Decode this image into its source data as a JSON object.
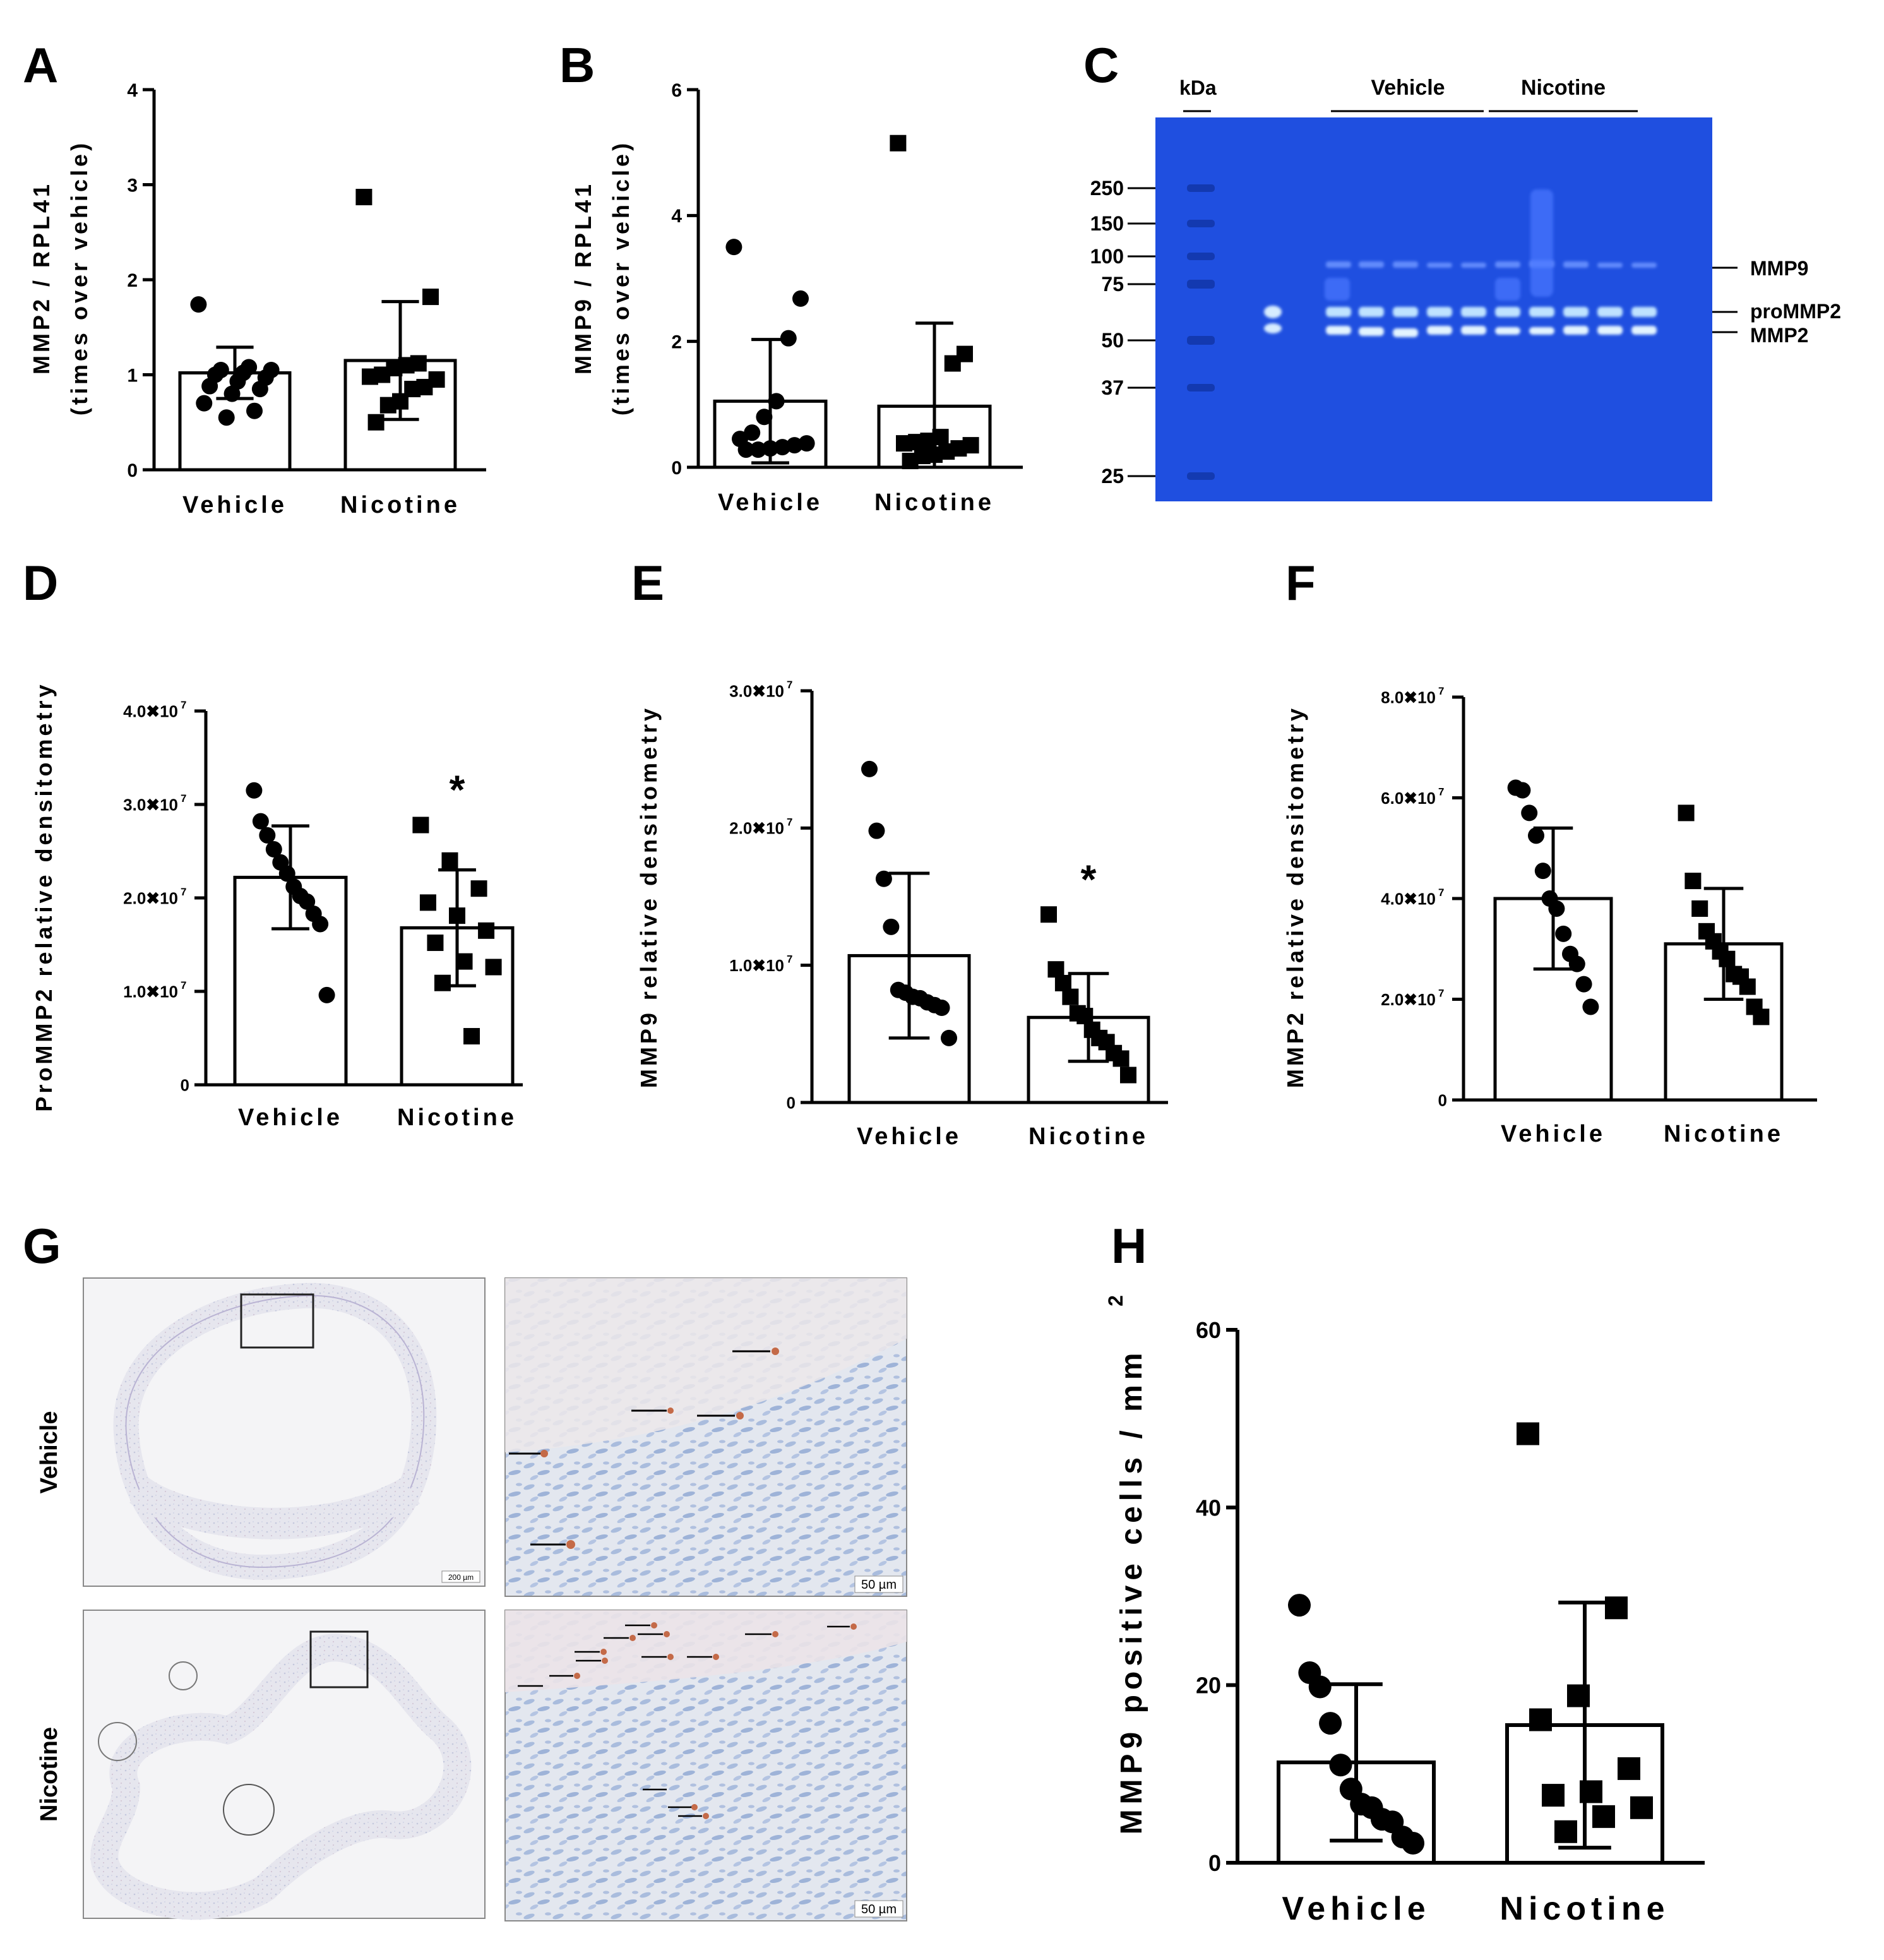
{
  "figure": {
    "panels": [
      {
        "letter": "A"
      },
      {
        "letter": "B"
      },
      {
        "letter": "C"
      },
      {
        "letter": "D"
      },
      {
        "letter": "E"
      },
      {
        "letter": "F"
      },
      {
        "letter": "G"
      },
      {
        "letter": "H"
      }
    ],
    "scale_labels": {
      "s200": "200 µm",
      "s50": "50 µm"
    },
    "histo_labels": {
      "vehicle": "Vehicle",
      "nicotine": "Nicotine"
    },
    "colors": {
      "gel": "#1f4fe0",
      "bar": "#ffffff",
      "ink": "#000000",
      "stain": "#c46a48"
    }
  },
  "gel": {
    "kda_label": "kDa",
    "group_vehicle": "Vehicle",
    "group_nicotine": "Nicotine",
    "ladder": [
      "250",
      "150",
      "100",
      "75",
      "50",
      "37",
      "25"
    ],
    "band_labels": [
      "MMP9",
      "proMMP2",
      "MMP2"
    ]
  },
  "chart_data": [
    {
      "panel": "A",
      "type": "bar",
      "ylabel1": "MMP2 / RPL41",
      "ylabel2": "(times over vehicle)",
      "categories": [
        "Vehicle",
        "Nicotine"
      ],
      "ylim": [
        0,
        4
      ],
      "ticks": [
        0,
        1,
        2,
        3,
        4
      ],
      "tick_labels": [
        "0",
        "1",
        "2",
        "3",
        "4"
      ],
      "means": [
        1.02,
        1.15
      ],
      "sd": [
        0.27,
        0.62
      ],
      "markers": [
        "circle",
        "square"
      ],
      "points": [
        [
          1.74,
          1.08,
          1.05,
          1.05,
          1.02,
          1.0,
          0.97,
          0.93,
          0.88,
          0.85,
          0.8,
          0.7,
          0.62,
          0.55
        ],
        [
          2.87,
          1.82,
          1.12,
          1.1,
          1.07,
          1.0,
          0.98,
          0.95,
          0.87,
          0.85,
          0.72,
          0.68,
          0.5
        ]
      ]
    },
    {
      "panel": "B",
      "type": "bar",
      "ylabel1": "MMP9 / RPL41",
      "ylabel2": "(times over vehicle)",
      "categories": [
        "Vehicle",
        "Nicotine"
      ],
      "ylim": [
        0,
        6
      ],
      "ticks": [
        0,
        2,
        4,
        6
      ],
      "tick_labels": [
        "0",
        "2",
        "4",
        "6"
      ],
      "means": [
        1.05,
        0.97
      ],
      "sd": [
        0.98,
        1.32
      ],
      "markers": [
        "circle",
        "square"
      ],
      "points": [
        [
          3.5,
          2.68,
          2.05,
          1.05,
          0.8,
          0.55,
          0.45,
          0.38,
          0.35,
          0.32,
          0.3,
          0.28,
          0.28
        ],
        [
          5.15,
          1.8,
          1.65,
          0.48,
          0.42,
          0.4,
          0.38,
          0.35,
          0.3,
          0.25,
          0.2,
          0.18,
          0.1
        ]
      ]
    },
    {
      "panel": "D",
      "type": "bar",
      "ylabel1": "ProMMP2 relative densitometry",
      "categories": [
        "Vehicle",
        "Nicotine"
      ],
      "ylim": [
        0,
        40000000
      ],
      "ticks": [
        0,
        10000000,
        20000000,
        30000000,
        40000000
      ],
      "tick_labels": [
        "0",
        "1.0✖10",
        "2.0✖10",
        "3.0✖10",
        "4.0✖10"
      ],
      "tick_exp": "7",
      "means": [
        22200000,
        16800000
      ],
      "sd": [
        5500000,
        6200000
      ],
      "markers": [
        "circle",
        "square"
      ],
      "points": [
        [
          31500000,
          28200000,
          26700000,
          25200000,
          23800000,
          22600000,
          21200000,
          20200000,
          19600000,
          18300000,
          17200000,
          9600000
        ],
        [
          27800000,
          24000000,
          21000000,
          19500000,
          18100000,
          16500000,
          15200000,
          13200000,
          12600000,
          10900000,
          5200000
        ]
      ],
      "significance": "*"
    },
    {
      "panel": "E",
      "type": "bar",
      "ylabel1": "MMP9 relative densitometry",
      "categories": [
        "Vehicle",
        "Nicotine"
      ],
      "ylim": [
        0,
        30000000
      ],
      "ticks": [
        0,
        10000000,
        20000000,
        30000000
      ],
      "tick_labels": [
        "0",
        "1.0✖10",
        "2.0✖10",
        "3.0✖10"
      ],
      "tick_exp": "7",
      "means": [
        10700000,
        6200000
      ],
      "sd": [
        6000000,
        3200000
      ],
      "markers": [
        "circle",
        "square"
      ],
      "points": [
        [
          24300000,
          19800000,
          16300000,
          12800000,
          8200000,
          8000000,
          7700000,
          7600000,
          7300000,
          7100000,
          6900000,
          4700000
        ],
        [
          13700000,
          9700000,
          8700000,
          7700000,
          6500000,
          6300000,
          5300000,
          4700000,
          4400000,
          3600000,
          3200000,
          2000000
        ]
      ],
      "significance": "*"
    },
    {
      "panel": "F",
      "type": "bar",
      "ylabel1": "MMP2 relative densitometry",
      "categories": [
        "Vehicle",
        "Nicotine"
      ],
      "ylim": [
        0,
        80000000
      ],
      "ticks": [
        0,
        20000000,
        40000000,
        60000000,
        80000000
      ],
      "tick_labels": [
        "0",
        "2.0✖10",
        "4.0✖10",
        "6.0✖10",
        "8.0✖10"
      ],
      "tick_exp": "7",
      "means": [
        40000000,
        31000000
      ],
      "sd": [
        14000000,
        11000000
      ],
      "markers": [
        "circle",
        "square"
      ],
      "points": [
        [
          62000000,
          61500000,
          57000000,
          52500000,
          45500000,
          40000000,
          38000000,
          33000000,
          29000000,
          27000000,
          23000000,
          18500000
        ],
        [
          57000000,
          43500000,
          38000000,
          33500000,
          31500000,
          29500000,
          28000000,
          25000000,
          24500000,
          22500000,
          18500000,
          16500000
        ]
      ]
    },
    {
      "panel": "H",
      "type": "bar",
      "ylabel1": "MMP9 positive cells / mm",
      "ylabel_sup": "2",
      "categories": [
        "Vehicle",
        "Nicotine"
      ],
      "ylim": [
        0,
        60
      ],
      "ticks": [
        0,
        20,
        40,
        60
      ],
      "tick_labels": [
        "0",
        "20",
        "40",
        "60"
      ],
      "means": [
        11.3,
        15.5
      ],
      "sd": [
        8.8,
        13.8
      ],
      "markers": [
        "circle",
        "square"
      ],
      "points": [
        [
          29,
          21.4,
          19.8,
          15.7,
          11,
          8.3,
          6.6,
          6.2,
          4.9,
          4.6,
          2.9,
          2.2
        ],
        [
          48.3,
          28.7,
          18.8,
          16.1,
          10.6,
          8,
          7.6,
          6.2,
          5.2,
          3.5
        ]
      ]
    }
  ]
}
